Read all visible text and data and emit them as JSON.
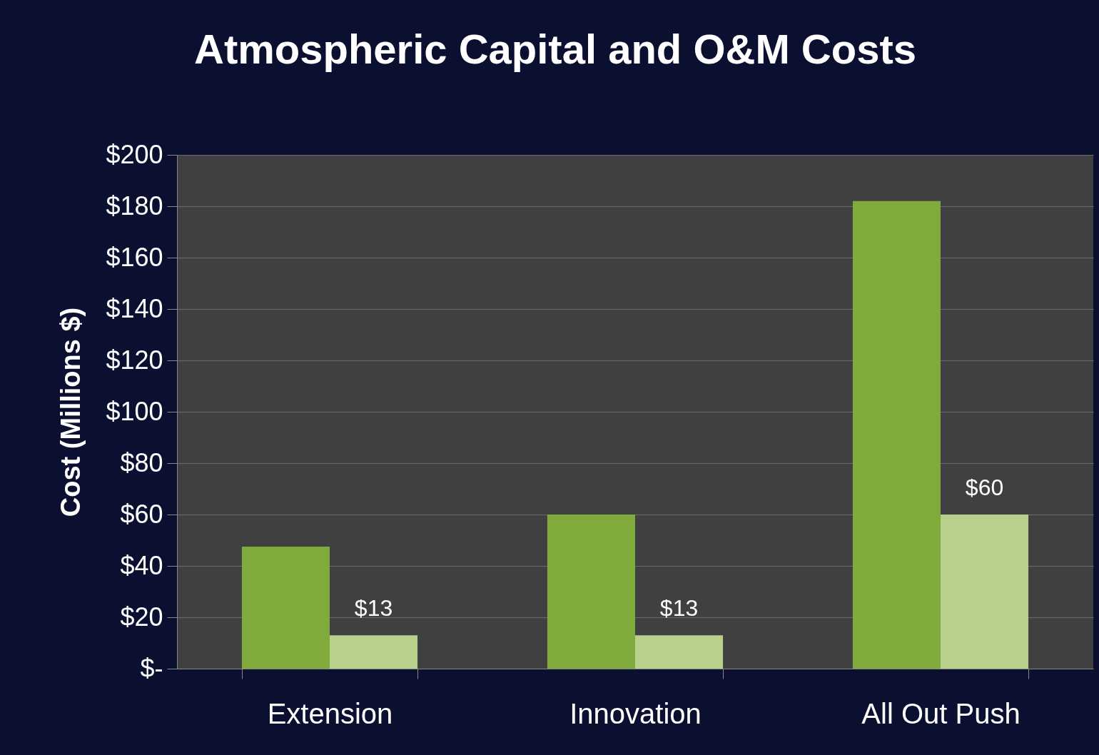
{
  "chart_data": {
    "type": "bar",
    "title": "Atmospheric Capital and O&M Costs",
    "ylabel": "Cost (Millions $)",
    "categories": [
      "Extension",
      "Innovation",
      "All Out Push"
    ],
    "series": [
      {
        "color": "#80aa3c",
        "values": [
          47.5,
          60,
          182
        ]
      },
      {
        "color": "#b7d08c",
        "values": [
          13,
          13,
          60
        ],
        "value_labels": [
          "$13",
          "$13",
          "$60"
        ]
      }
    ],
    "ylim": [
      0,
      200
    ],
    "yticks": [
      {
        "value": 0,
        "label": "$-"
      },
      {
        "value": 20,
        "label": "$20"
      },
      {
        "value": 40,
        "label": "$40"
      },
      {
        "value": 60,
        "label": "$60"
      },
      {
        "value": 80,
        "label": "$80"
      },
      {
        "value": 100,
        "label": "$100"
      },
      {
        "value": 120,
        "label": "$120"
      },
      {
        "value": 140,
        "label": "$140"
      },
      {
        "value": 160,
        "label": "$160"
      },
      {
        "value": 180,
        "label": "$180"
      },
      {
        "value": 200,
        "label": "$200"
      }
    ],
    "grid": "y"
  }
}
